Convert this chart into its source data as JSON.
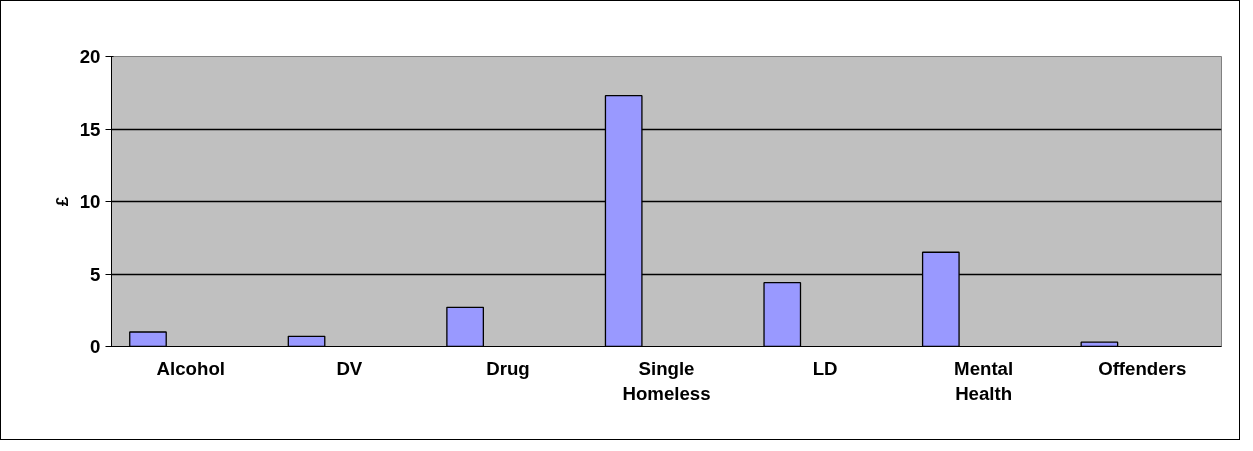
{
  "chart_data": {
    "type": "bar",
    "ylabel": "£",
    "categories": [
      "Alcohol",
      "DV",
      "Drug",
      "Single Homeless",
      "LD",
      "Mental Health",
      "Offenders"
    ],
    "values": [
      1.0,
      0.7,
      2.7,
      17.3,
      4.4,
      6.5,
      0.3
    ],
    "color": "#9999ff",
    "ylim": [
      0,
      20
    ],
    "yticks": [
      0,
      5,
      10,
      15,
      20
    ],
    "grid": "y"
  }
}
